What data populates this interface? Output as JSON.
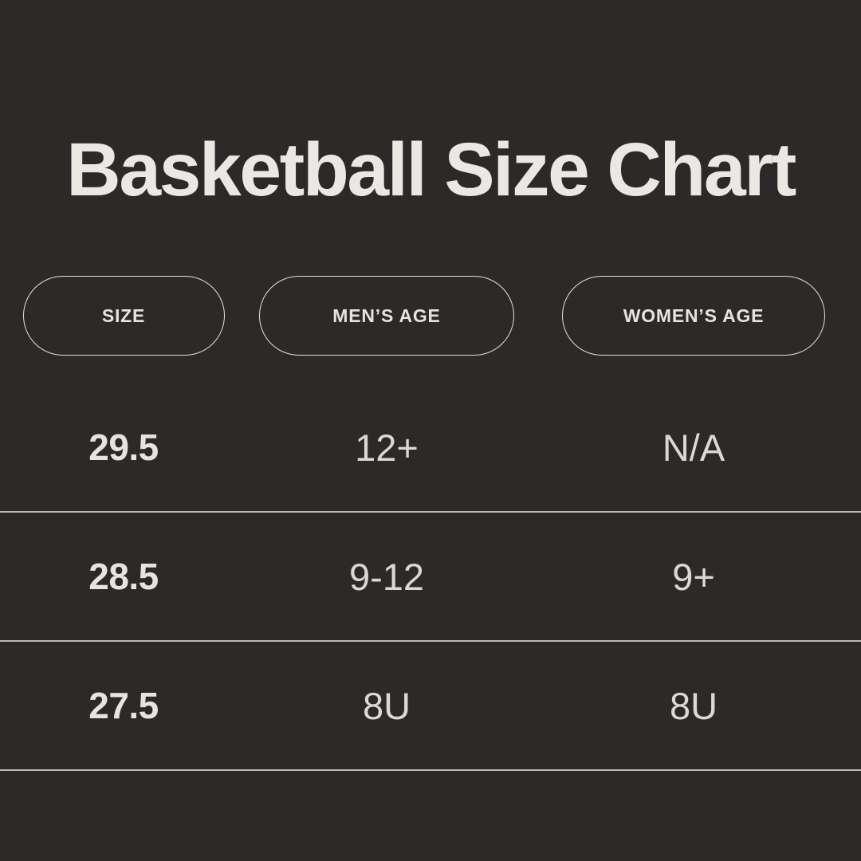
{
  "page": {
    "background_color": "#2b2a29",
    "text_color": "#e8e6e0",
    "muted_text_color": "#dbd9d3",
    "divider_color": "#d6d4ce",
    "pill_border_color": "#e3e1db"
  },
  "title": "Basketball Size Chart",
  "columns": [
    {
      "label": "SIZE"
    },
    {
      "label": "MEN’S AGE"
    },
    {
      "label": "WOMEN’S AGE"
    }
  ],
  "rows": [
    {
      "size": "29.5",
      "mens_age": "12+",
      "womens_age": "N/A"
    },
    {
      "size": "28.5",
      "mens_age": "9-12",
      "womens_age": "9+"
    },
    {
      "size": "27.5",
      "mens_age": "8U",
      "womens_age": "8U"
    }
  ],
  "chart_data": {
    "type": "table",
    "title": "Basketball Size Chart",
    "columns": [
      "SIZE",
      "MEN’S AGE",
      "WOMEN’S AGE"
    ],
    "rows": [
      [
        "29.5",
        "12+",
        "N/A"
      ],
      [
        "28.5",
        "9-12",
        "9+"
      ],
      [
        "27.5",
        "8U",
        "8U"
      ]
    ]
  }
}
